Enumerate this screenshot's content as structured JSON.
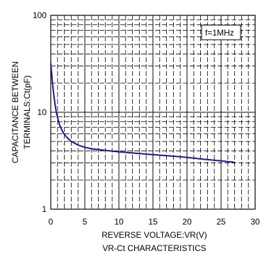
{
  "chart_data": {
    "type": "line",
    "title": "VR-Ct CHARACTERISTICS",
    "xlabel": "REVERSE VOLTAGE:VR(V)",
    "ylabel_lines": [
      "CAPACITANCE BETWEEN",
      "TERMINALS:Ct(pF)"
    ],
    "annotation": "f=1MHz",
    "x_scale": "linear",
    "y_scale": "log",
    "xlim": [
      0,
      30
    ],
    "ylim": [
      1,
      100
    ],
    "x_ticks": [
      0,
      5,
      10,
      15,
      20,
      25,
      30
    ],
    "y_ticks": [
      1,
      10,
      100
    ],
    "grid": true,
    "line_color": "#1a1a8c",
    "series": [
      {
        "x": [
          0,
          0.2,
          0.4,
          0.6,
          0.8,
          1.0,
          1.3,
          1.6,
          2,
          2.5,
          3,
          4,
          5,
          6,
          8,
          10,
          12,
          15,
          18,
          20,
          22,
          25,
          27
        ],
        "y": [
          32,
          22,
          16,
          12.5,
          10.2,
          8.8,
          7.4,
          6.6,
          5.9,
          5.4,
          5.0,
          4.6,
          4.35,
          4.2,
          4.05,
          3.9,
          3.8,
          3.65,
          3.52,
          3.42,
          3.3,
          3.15,
          3.05
        ]
      }
    ]
  }
}
